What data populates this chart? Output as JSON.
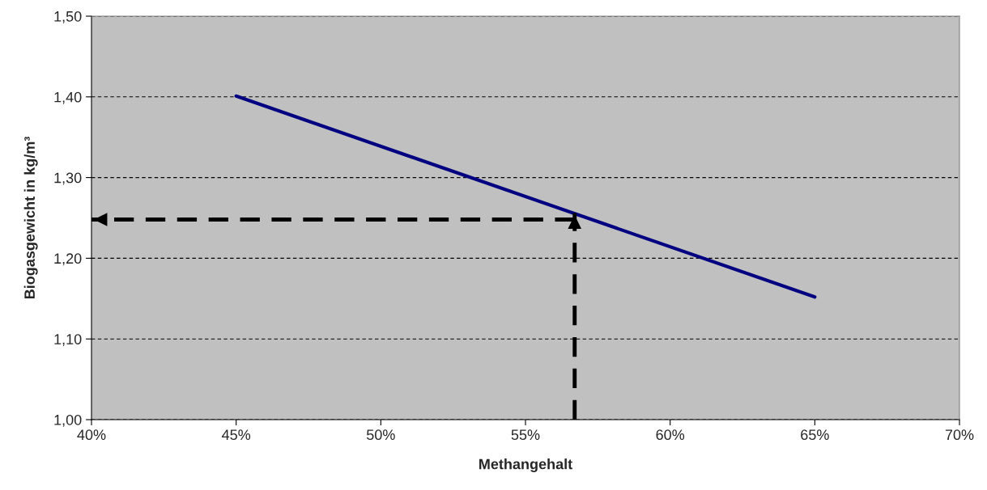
{
  "chart_data": {
    "type": "line",
    "xlabel": "Methangehalt",
    "ylabel": "Biogasgewicht in kg/m³",
    "series": [
      {
        "color": "#000080",
        "x": [
          45,
          65
        ],
        "values": [
          1.401,
          1.152
        ],
        "line_style": "solid"
      },
      {
        "color": "#000000",
        "x": [
          56.7,
          56.7
        ],
        "values": [
          1.0,
          1.256
        ],
        "line_style": "dashed"
      },
      {
        "color": "#000000",
        "x": [
          56.7,
          40
        ],
        "values": [
          1.248,
          1.248
        ],
        "line_style": "dashed"
      }
    ],
    "xlim": [
      40,
      70
    ],
    "ylim": [
      1.0,
      1.5
    ],
    "xticks": [
      {
        "value": 40,
        "label": "40%"
      },
      {
        "value": 45,
        "label": "45%"
      },
      {
        "value": 50,
        "label": "50%"
      },
      {
        "value": 55,
        "label": "55%"
      },
      {
        "value": 60,
        "label": "60%"
      },
      {
        "value": 65,
        "label": "65%"
      },
      {
        "value": 70,
        "label": "70%"
      }
    ],
    "yticks": [
      {
        "value": 1.0,
        "label": "1,00"
      },
      {
        "value": 1.1,
        "label": "1,10"
      },
      {
        "value": 1.2,
        "label": "1,20"
      },
      {
        "value": 1.3,
        "label": "1,30"
      },
      {
        "value": 1.4,
        "label": "1,40"
      },
      {
        "value": 1.5,
        "label": "1,50"
      }
    ],
    "grid": "y",
    "marker": "none",
    "legend": false
  }
}
